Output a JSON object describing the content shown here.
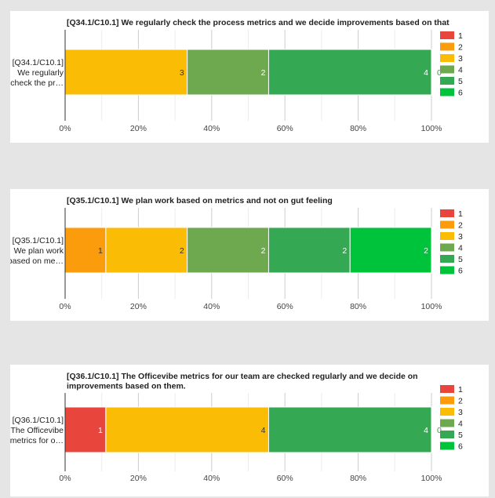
{
  "chart_data": [
    {
      "type": "bar",
      "orientation": "horizontal",
      "stacked": "percent",
      "title_lines": [
        "[Q34.1/C10.1] We regularly check the process metrics and we decide improvements based on that"
      ],
      "category_lines": [
        "[Q34.1/C10.1]",
        "We regularly",
        "check the pr…"
      ],
      "xlim": [
        0,
        100
      ],
      "x_ticks": [
        "0%",
        "20%",
        "40%",
        "60%",
        "80%",
        "100%"
      ],
      "legend_position": "right",
      "grid": true,
      "series": [
        {
          "name": "1",
          "color": "#e8453c",
          "value": 0
        },
        {
          "name": "2",
          "color": "#fb9c0c",
          "value": 0
        },
        {
          "name": "3",
          "color": "#fbbc05",
          "value": 3
        },
        {
          "name": "4",
          "color": "#6ea84f",
          "value": 2
        },
        {
          "name": "5",
          "color": "#34a853",
          "value": 4
        },
        {
          "name": "6",
          "color": "#00c33c",
          "value": 0
        }
      ]
    },
    {
      "type": "bar",
      "orientation": "horizontal",
      "stacked": "percent",
      "title_lines": [
        "[Q35.1/C10.1] We plan work based on metrics and not on gut feeling"
      ],
      "category_lines": [
        "[Q35.1/C10.1]",
        "We plan work",
        "based on me…"
      ],
      "xlim": [
        0,
        100
      ],
      "x_ticks": [
        "0%",
        "20%",
        "40%",
        "60%",
        "80%",
        "100%"
      ],
      "legend_position": "right",
      "grid": true,
      "series": [
        {
          "name": "1",
          "color": "#e8453c",
          "value": 0
        },
        {
          "name": "2",
          "color": "#fb9c0c",
          "value": 1
        },
        {
          "name": "3",
          "color": "#fbbc05",
          "value": 2
        },
        {
          "name": "4",
          "color": "#6ea84f",
          "value": 2
        },
        {
          "name": "5",
          "color": "#34a853",
          "value": 2
        },
        {
          "name": "6",
          "color": "#00c33c",
          "value": 2
        }
      ]
    },
    {
      "type": "bar",
      "orientation": "horizontal",
      "stacked": "percent",
      "title_lines": [
        "[Q36.1/C10.1] The Officevibe metrics for our team are checked regularly and we decide on",
        "improvements based on them."
      ],
      "category_lines": [
        "[Q36.1/C10.1]",
        "The Officevibe",
        "metrics for o…"
      ],
      "xlim": [
        0,
        100
      ],
      "x_ticks": [
        "0%",
        "20%",
        "40%",
        "60%",
        "80%",
        "100%"
      ],
      "legend_position": "right",
      "grid": true,
      "series": [
        {
          "name": "1",
          "color": "#e8453c",
          "value": 1
        },
        {
          "name": "2",
          "color": "#fb9c0c",
          "value": 0
        },
        {
          "name": "3",
          "color": "#fbbc05",
          "value": 4
        },
        {
          "name": "4",
          "color": "#6ea84f",
          "value": 0
        },
        {
          "name": "5",
          "color": "#34a853",
          "value": 4
        },
        {
          "name": "6",
          "color": "#00c33c",
          "value": 0
        }
      ]
    }
  ]
}
